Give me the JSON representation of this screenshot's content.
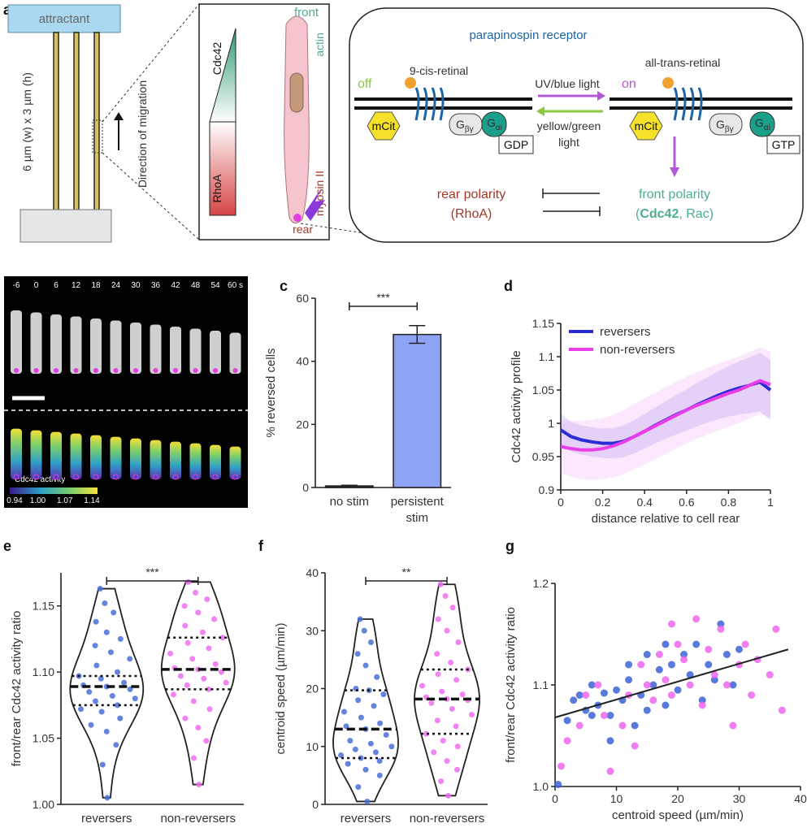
{
  "panel_labels": {
    "a": "a",
    "b": "b",
    "c": "c",
    "d": "d",
    "e": "e",
    "f": "f",
    "g": "g"
  },
  "panel_a": {
    "attractant": "attractant",
    "channel_size": "6 µm (w) x 3 µm (h)",
    "direction": "Direction of migration",
    "cell": {
      "front": "front",
      "actin": "actin",
      "cdc42": "Cdc42",
      "rhoa": "RhoA",
      "myosin": "myosin II",
      "rear": "rear"
    },
    "receptor": {
      "title": "parapinospin receptor",
      "off": "off",
      "on": "on",
      "cis": "9-cis-retinal",
      "trans": "all-trans-retinal",
      "uv": "UV/blue light",
      "yellow": [
        "yellow/green",
        "light"
      ],
      "mcit": "mCit",
      "g": "G",
      "by": "βγ",
      "ai": "αi",
      "gdp": "GDP",
      "gtp": "GTP",
      "rear_polarity": "rear polarity",
      "rhoa": "(RhoA)",
      "front_polarity": "front polarity",
      "open": "(",
      "cdc42": "Cdc42",
      "rac": ", Rac)"
    }
  },
  "panel_b": {
    "times": [
      "-6",
      "0",
      "6",
      "12",
      "18",
      "24",
      "30",
      "36",
      "42",
      "48",
      "54",
      "60 s"
    ],
    "colorbar_label": "Cdc42 activity",
    "colorbar_ticks": [
      {
        "value": 0.94,
        "label": "0.94"
      },
      {
        "value": 1.0,
        "label": "1.00"
      },
      {
        "value": 1.07,
        "label": "1.07"
      },
      {
        "value": 1.14,
        "label": "1.14"
      }
    ]
  },
  "chart_data": [
    {
      "type": "bar",
      "ylabel": "% reversed cells",
      "categories": [
        [
          "no stim"
        ],
        [
          "persistent",
          "stim"
        ]
      ],
      "values": [
        0.5,
        48.5
      ],
      "errors": [
        0.2,
        2.8
      ],
      "colors": [
        "#222222",
        "#8fa3f5"
      ],
      "ylim": [
        0,
        60
      ],
      "yticks": [
        0,
        20,
        40,
        60
      ],
      "significance": "***"
    },
    {
      "type": "line",
      "ylabel": "Cdc42 activity profile",
      "xlabel": "distance relative to cell rear",
      "xlim": [
        0,
        1
      ],
      "xticks": [
        0,
        0.2,
        0.4,
        0.6,
        0.8,
        1
      ],
      "ylim": [
        0.9,
        1.15
      ],
      "yticks": [
        0.9,
        0.95,
        1,
        1.05,
        1.1,
        1.15
      ],
      "legend": "upper left",
      "x": [
        0,
        0.05,
        0.1,
        0.15,
        0.2,
        0.25,
        0.3,
        0.35,
        0.4,
        0.45,
        0.5,
        0.55,
        0.6,
        0.65,
        0.7,
        0.75,
        0.8,
        0.85,
        0.9,
        0.95,
        1
      ],
      "series": [
        {
          "name": "reversers",
          "color": "#2c2cd6",
          "values": [
            0.99,
            0.98,
            0.975,
            0.972,
            0.97,
            0.97,
            0.973,
            0.98,
            0.988,
            0.997,
            1.005,
            1.013,
            1.02,
            1.028,
            1.035,
            1.042,
            1.048,
            1.053,
            1.057,
            1.062,
            1.05
          ],
          "errors": [
            0.025,
            0.022,
            0.022,
            0.022,
            0.022,
            0.023,
            0.024,
            0.025,
            0.026,
            0.027,
            0.028,
            0.03,
            0.031,
            0.033,
            0.034,
            0.036,
            0.038,
            0.04,
            0.042,
            0.044,
            0.045
          ]
        },
        {
          "name": "non-reversers",
          "color": "#e83ee8",
          "values": [
            0.965,
            0.962,
            0.96,
            0.96,
            0.962,
            0.966,
            0.972,
            0.98,
            0.988,
            0.996,
            1.004,
            1.012,
            1.02,
            1.027,
            1.033,
            1.039,
            1.045,
            1.05,
            1.057,
            1.064,
            1.058
          ],
          "errors": [
            0.04,
            0.042,
            0.044,
            0.045,
            0.046,
            0.047,
            0.048,
            0.049,
            0.05,
            0.05,
            0.05,
            0.05,
            0.05,
            0.05,
            0.05,
            0.05,
            0.05,
            0.05,
            0.05,
            0.05,
            0.05
          ]
        }
      ]
    },
    {
      "type": "violin",
      "ylabel": "front/rear Cdc42 activity ratio",
      "ylim": [
        1.0,
        1.175
      ],
      "yticks": [
        {
          "value": 1.0,
          "label": "1.00"
        },
        {
          "value": 1.05,
          "label": "1.05"
        },
        {
          "value": 1.1,
          "label": "1.10"
        },
        {
          "value": 1.15,
          "label": "1.15"
        }
      ],
      "significance": "***",
      "groups": [
        {
          "name": "reversers",
          "color": "#4a6fd8",
          "median": 1.089,
          "q1": 1.075,
          "q3": 1.097,
          "values": [
            1.163,
            1.152,
            1.145,
            1.138,
            1.13,
            1.125,
            1.12,
            1.115,
            1.11,
            1.105,
            1.1,
            1.097,
            1.095,
            1.092,
            1.09,
            1.089,
            1.087,
            1.085,
            1.082,
            1.08,
            1.078,
            1.075,
            1.072,
            1.07,
            1.065,
            1.06,
            1.055,
            1.045,
            1.03,
            1.005
          ]
        },
        {
          "name": "non-reversers",
          "color": "#ee6eee",
          "median": 1.102,
          "q1": 1.087,
          "q3": 1.126,
          "values": [
            1.168,
            1.16,
            1.155,
            1.15,
            1.145,
            1.14,
            1.135,
            1.13,
            1.126,
            1.122,
            1.118,
            1.114,
            1.11,
            1.106,
            1.103,
            1.102,
            1.1,
            1.097,
            1.095,
            1.092,
            1.09,
            1.087,
            1.083,
            1.078,
            1.072,
            1.065,
            1.058,
            1.048,
            1.035,
            1.015
          ]
        }
      ]
    },
    {
      "type": "violin",
      "ylabel": "centroid speed (µm/min)",
      "ylim": [
        0,
        40
      ],
      "yticks": [
        0,
        10,
        20,
        30,
        40
      ],
      "significance": "**",
      "groups": [
        {
          "name": "reversers",
          "color": "#4a6fd8",
          "median": 13,
          "q1": 8,
          "q3": 19.7,
          "values": [
            32,
            30,
            28,
            26,
            24,
            22,
            20,
            19.7,
            19,
            18,
            17,
            16,
            15,
            14,
            13.5,
            13,
            12,
            11,
            10.5,
            10,
            9.5,
            9,
            8.5,
            8,
            7.5,
            7,
            6,
            5,
            3,
            0.5
          ]
        },
        {
          "name": "non-reversers",
          "color": "#ee6eee",
          "median": 18.2,
          "q1": 12.2,
          "q3": 23.3,
          "values": [
            38,
            36,
            34,
            32,
            30,
            28,
            26,
            24.5,
            23.3,
            22.5,
            21.5,
            20.5,
            19.5,
            19,
            18.5,
            18.2,
            18,
            17.5,
            16.5,
            15.5,
            14.5,
            13.5,
            12.2,
            11,
            10,
            9,
            7.5,
            6,
            4,
            1.5
          ]
        }
      ]
    },
    {
      "type": "scatter",
      "xlabel": "centroid speed (µm/min)",
      "ylabel": "front/rear Cdc42 activity ratio",
      "xlim": [
        0,
        40
      ],
      "xticks": [
        0,
        10,
        20,
        30,
        40
      ],
      "ylim": [
        1.0,
        1.2
      ],
      "yticks": [
        {
          "value": 1.0,
          "label": "1.0"
        },
        {
          "value": 1.1,
          "label": "1.1"
        },
        {
          "value": 1.2,
          "label": "1.2"
        }
      ],
      "fit": {
        "x": [
          0,
          38
        ],
        "y": [
          1.068,
          1.135
        ]
      },
      "series": [
        {
          "color": "#3a63d6",
          "x": [
            0.5,
            2,
            3,
            4,
            5,
            6,
            7,
            8,
            9,
            10,
            11,
            12,
            13,
            14,
            15,
            16,
            17,
            18,
            19,
            20,
            21,
            22,
            23,
            24,
            25,
            26,
            27,
            28,
            29,
            30,
            12,
            9,
            18,
            6,
            15
          ],
          "y": [
            1.002,
            1.065,
            1.085,
            1.09,
            1.075,
            1.1,
            1.08,
            1.092,
            1.07,
            1.095,
            1.085,
            1.105,
            1.06,
            1.09,
            1.075,
            1.1,
            1.115,
            1.08,
            1.12,
            1.095,
            1.13,
            1.11,
            1.14,
            1.085,
            1.12,
            1.105,
            1.16,
            1.13,
            1.1,
            1.135,
            1.12,
            1.045,
            1.14,
            1.07,
            1.13
          ]
        },
        {
          "color": "#ee66ee",
          "x": [
            1,
            2,
            4,
            5,
            7,
            8,
            9,
            11,
            12,
            14,
            15,
            16,
            17,
            18,
            19,
            20,
            21,
            22,
            23,
            24,
            25,
            26,
            27,
            28,
            30,
            31,
            32,
            33,
            35,
            36,
            37,
            19,
            13,
            29
          ],
          "y": [
            1.02,
            1.045,
            1.06,
            1.09,
            1.1,
            1.07,
            1.015,
            1.06,
            1.09,
            1.12,
            1.1,
            1.085,
            1.13,
            1.105,
            1.09,
            1.14,
            1.125,
            1.1,
            1.165,
            1.08,
            1.135,
            1.11,
            1.155,
            1.1,
            1.12,
            1.14,
            1.09,
            1.125,
            1.11,
            1.155,
            1.075,
            1.16,
            1.04,
            1.06
          ]
        }
      ]
    }
  ]
}
